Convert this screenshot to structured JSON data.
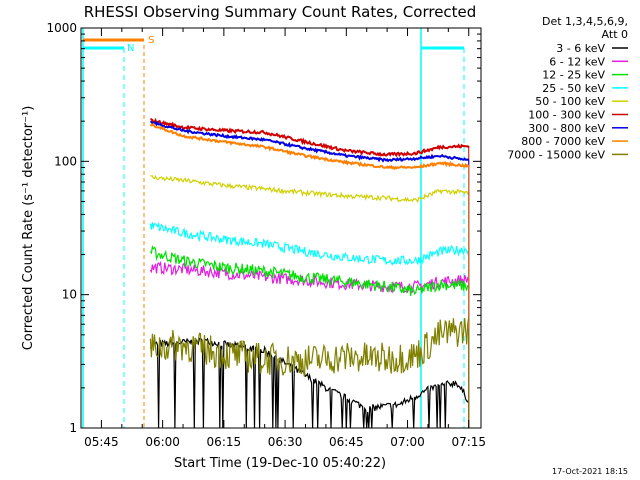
{
  "chart_data": {
    "type": "line",
    "title": "RHESSI Observing Summary Count Rates, Corrected",
    "xlabel": "Start Time (19-Dec-10 05:40:22)",
    "ylabel": "Corrected Count Rate (s⁻¹ detector⁻¹)",
    "y_scale": "log",
    "ylim": [
      1,
      1000
    ],
    "xlim_minutes_after_0540": [
      0,
      98
    ],
    "x_ticks": [
      "05:45",
      "06:00",
      "06:15",
      "06:30",
      "06:45",
      "07:00",
      "07:15"
    ],
    "y_ticks": [
      "1",
      "10",
      "100",
      "1000"
    ],
    "legend_title_lines": [
      "Det 1,3,4,5,6,9,",
      "Att 0"
    ],
    "legend_position": "top-right",
    "timestamp": "17-Oct-2021 18:15",
    "flag_labels": {
      "S": "S",
      "N": "N"
    },
    "series": [
      {
        "name": "3 - 6 keV",
        "color": "#000000",
        "x": [
          17,
          30,
          45,
          60,
          70,
          78,
          86,
          92,
          95
        ],
        "y": [
          4.2,
          4.5,
          3.8,
          2.0,
          1.4,
          1.5,
          2.0,
          2.2,
          1.6
        ]
      },
      {
        "name": "6 - 12 keV",
        "color": "#e020e0",
        "x": [
          17,
          25,
          35,
          45,
          55,
          65,
          75,
          82,
          88,
          95
        ],
        "y": [
          16,
          15.5,
          14.5,
          13.5,
          12.8,
          12,
          11.5,
          11.5,
          12.5,
          13
        ]
      },
      {
        "name": "12 - 25 keV",
        "color": "#00e000",
        "x": [
          17,
          25,
          35,
          45,
          55,
          65,
          75,
          82,
          88,
          95
        ],
        "y": [
          21,
          18,
          16,
          15,
          13.5,
          12.5,
          11.5,
          10.5,
          12,
          11.5
        ]
      },
      {
        "name": "25 - 50 keV",
        "color": "#00ffff",
        "x": [
          17,
          25,
          35,
          45,
          55,
          65,
          75,
          82,
          88,
          95
        ],
        "y": [
          33,
          29,
          26,
          24,
          21,
          19,
          18,
          18,
          21,
          22
        ]
      },
      {
        "name": "50 - 100 keV",
        "color": "#d0d000",
        "x": [
          17,
          25,
          35,
          45,
          55,
          65,
          75,
          82,
          88,
          95
        ],
        "y": [
          76,
          72,
          66,
          62,
          58,
          55,
          53,
          51,
          60,
          58
        ]
      },
      {
        "name": "100 - 300 keV",
        "color": "#d00000",
        "x": [
          17,
          25,
          35,
          45,
          55,
          65,
          75,
          82,
          88,
          95
        ],
        "y": [
          203,
          180,
          170,
          165,
          140,
          120,
          112,
          115,
          128,
          130
        ]
      },
      {
        "name": "300 - 800 keV",
        "color": "#0000e0",
        "x": [
          17,
          25,
          35,
          45,
          55,
          65,
          75,
          82,
          88,
          95
        ],
        "y": [
          197,
          170,
          155,
          145,
          125,
          110,
          102,
          105,
          110,
          102
        ]
      },
      {
        "name": "800 - 7000 keV",
        "color": "#ff8000",
        "x": [
          17,
          25,
          35,
          45,
          55,
          65,
          75,
          82,
          88,
          95
        ],
        "y": [
          190,
          155,
          140,
          128,
          110,
          98,
          90,
          90,
          97,
          92
        ]
      },
      {
        "name": "7000 - 15000 keV",
        "color": "#808000",
        "x": [
          17,
          25,
          35,
          45,
          55,
          65,
          75,
          82,
          88,
          95
        ],
        "y": [
          4.0,
          4.2,
          3.6,
          3.3,
          3.2,
          3.4,
          3.3,
          3.5,
          5.0,
          5.5
        ]
      }
    ]
  }
}
